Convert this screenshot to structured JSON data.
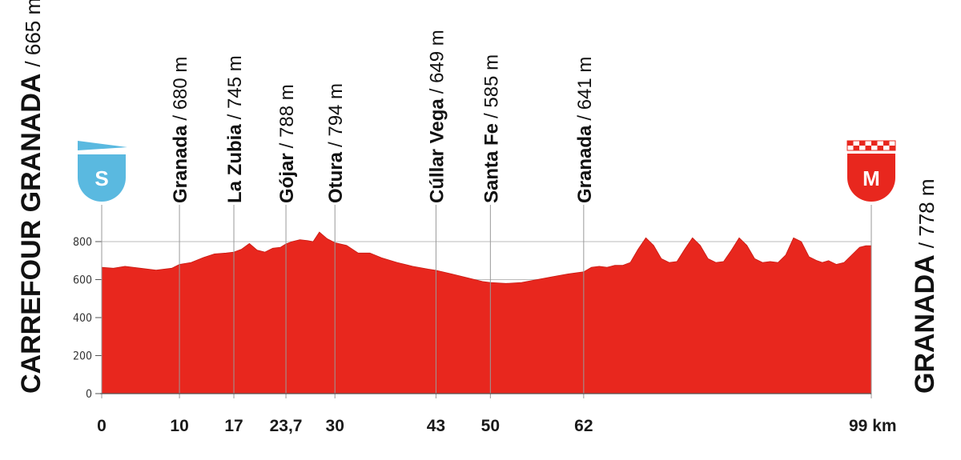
{
  "chart_data": {
    "type": "area",
    "title": "",
    "xlabel": "",
    "ylabel": "",
    "x_unit": "km",
    "xlim": [
      0,
      99
    ],
    "ylim": [
      0,
      900
    ],
    "y_ticks": [
      0,
      200,
      400,
      600,
      800
    ],
    "x_ticks": [
      {
        "value": 0,
        "label": "0"
      },
      {
        "value": 10,
        "label": "10"
      },
      {
        "value": 17,
        "label": "17"
      },
      {
        "value": 23.7,
        "label": "23,7"
      },
      {
        "value": 30,
        "label": "30"
      },
      {
        "value": 43,
        "label": "43"
      },
      {
        "value": 50,
        "label": "50"
      },
      {
        "value": 62,
        "label": "62"
      },
      {
        "value": 99,
        "label": "99 km"
      }
    ],
    "fill_color": "#e8271e",
    "grid_color": "#bbbbbb",
    "start": {
      "name": "CARREFOUR GRANADA",
      "altitude": "/ 665 m",
      "badge": "S",
      "badge_color": "#5ab9e0"
    },
    "finish": {
      "name": "GRANADA",
      "altitude": "/ 778 m",
      "badge": "M",
      "badge_color": "#e8271e"
    },
    "waypoints": [
      {
        "km": 10,
        "name": "Granada",
        "altitude": "/ 680 m"
      },
      {
        "km": 17,
        "name": "La Zubia",
        "altitude": "/ 745 m"
      },
      {
        "km": 23.7,
        "name": "Gójar",
        "altitude": "/ 788 m"
      },
      {
        "km": 30,
        "name": "Otura",
        "altitude": "/ 794 m"
      },
      {
        "km": 43,
        "name": "Cúllar Vega",
        "altitude": "/ 649 m"
      },
      {
        "km": 50,
        "name": "Santa Fe",
        "altitude": "/ 585 m"
      },
      {
        "km": 62,
        "name": "Granada",
        "altitude": "/ 641 m"
      }
    ],
    "series": [
      {
        "x": [
          0,
          1.5,
          3,
          5,
          7,
          9,
          10,
          11.5,
          13,
          14.5,
          16,
          17,
          18,
          19,
          20,
          21,
          22,
          23,
          23.7,
          24.5,
          25.5,
          26.5,
          27.2,
          28,
          29,
          30,
          31.5,
          33,
          34.5,
          36,
          38,
          40,
          42,
          43,
          45,
          47,
          49,
          50,
          52,
          54,
          56,
          58,
          60,
          62,
          63,
          64,
          65,
          66,
          67,
          68,
          69,
          70,
          71,
          72,
          73,
          74,
          75,
          76,
          77,
          78,
          79,
          80,
          81,
          82,
          83,
          84,
          85,
          86,
          87,
          88,
          89,
          90,
          91,
          92,
          92.7,
          93.5,
          94.5,
          95.5,
          96.5,
          97.5,
          98.3,
          99
        ],
        "y": [
          665,
          660,
          670,
          660,
          650,
          660,
          680,
          690,
          715,
          735,
          740,
          745,
          760,
          790,
          755,
          745,
          765,
          770,
          788,
          800,
          810,
          805,
          800,
          850,
          815,
          794,
          780,
          740,
          740,
          715,
          690,
          670,
          655,
          649,
          630,
          610,
          590,
          585,
          580,
          585,
          600,
          615,
          630,
          641,
          665,
          670,
          665,
          675,
          675,
          690,
          760,
          820,
          780,
          710,
          690,
          695,
          760,
          820,
          780,
          710,
          690,
          695,
          755,
          820,
          780,
          710,
          690,
          695,
          690,
          730,
          820,
          800,
          720,
          700,
          690,
          700,
          680,
          690,
          730,
          770,
          778,
          778
        ]
      }
    ]
  }
}
